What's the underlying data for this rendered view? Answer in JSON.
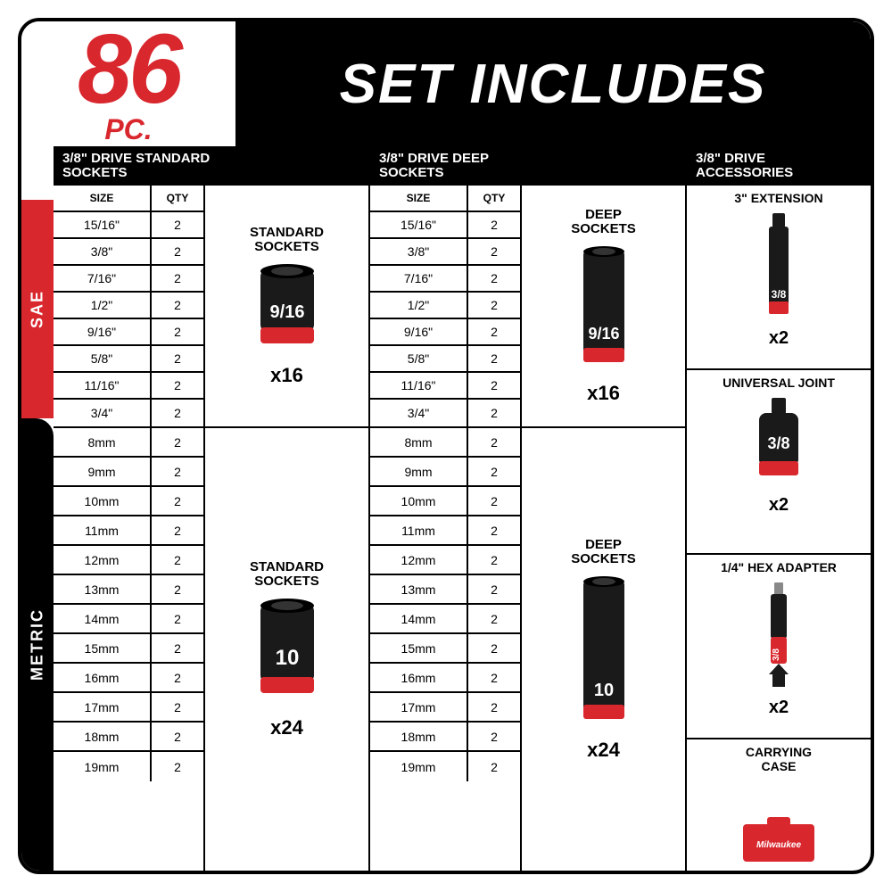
{
  "header": {
    "count": "86",
    "pc": "PC.",
    "title": "SET INCLUDES"
  },
  "side": {
    "sae": "SAE",
    "metric": "METRIC"
  },
  "colors": {
    "red": "#d9272e",
    "black": "#000000",
    "white": "#ffffff",
    "darkgray": "#1a1a1a"
  },
  "columns": {
    "standard": {
      "title": "3/8\" DRIVE STANDARD\nSOCKETS"
    },
    "deep": {
      "title": "3/8\" DRIVE DEEP\nSOCKETS"
    },
    "acc": {
      "title": "3/8\" DRIVE\nACCESSORIES"
    }
  },
  "table_headers": {
    "size": "SIZE",
    "qty": "QTY"
  },
  "sae_sizes": [
    "15/16\"",
    "3/8\"",
    "7/16\"",
    "1/2\"",
    "9/16\"",
    "5/8\"",
    "11/16\"",
    "3/4\""
  ],
  "sae_qty": "2",
  "metric_sizes": [
    "8mm",
    "9mm",
    "10mm",
    "11mm",
    "12mm",
    "13mm",
    "14mm",
    "15mm",
    "16mm",
    "17mm",
    "18mm",
    "19mm"
  ],
  "metric_qty": "2",
  "products": {
    "std_sae": {
      "label": "STANDARD\nSOCKETS",
      "qty": "x16",
      "mark": "9/16"
    },
    "std_metric": {
      "label": "STANDARD\nSOCKETS",
      "qty": "x24",
      "mark": "10"
    },
    "deep_sae": {
      "label": "DEEP\nSOCKETS",
      "qty": "x16",
      "mark": "9/16"
    },
    "deep_metric": {
      "label": "DEEP\nSOCKETS",
      "qty": "x24",
      "mark": "10"
    }
  },
  "accessories": {
    "ext": {
      "label": "3\" EXTENSION",
      "qty": "x2",
      "mark": "3/8"
    },
    "joint": {
      "label": "UNIVERSAL JOINT",
      "qty": "x2",
      "mark": "3/8"
    },
    "hex": {
      "label": "1/4\" HEX ADAPTER",
      "qty": "x2",
      "mark": "3/8"
    },
    "case": {
      "label": "CARRYING\nCASE"
    }
  }
}
